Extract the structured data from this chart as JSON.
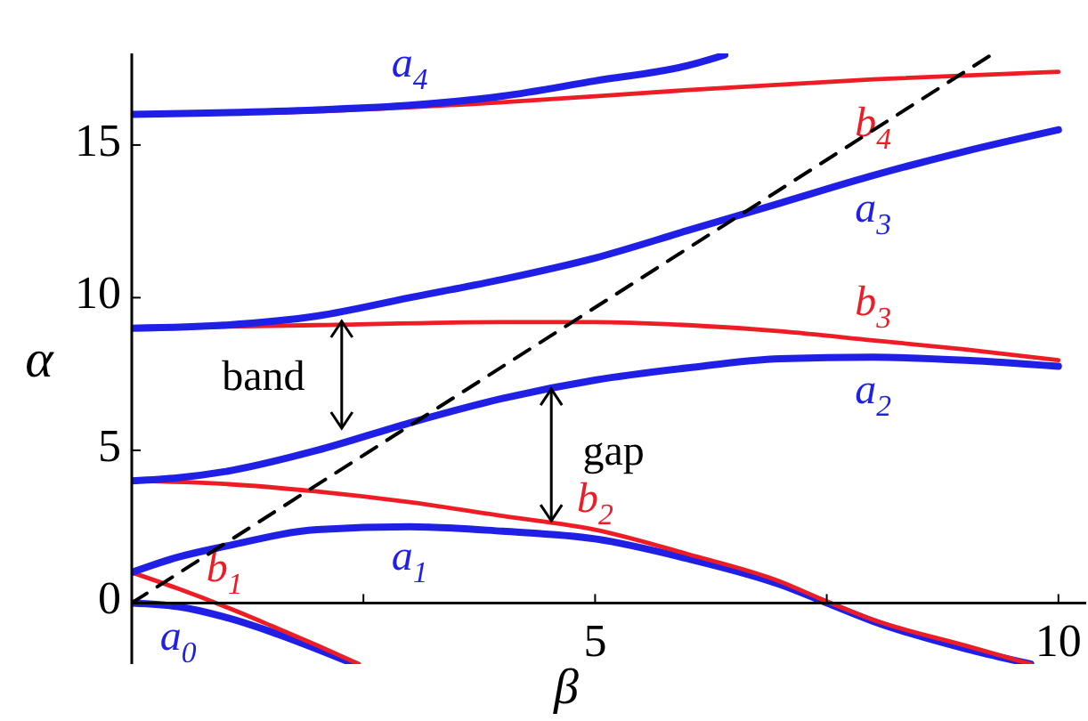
{
  "chart_data": {
    "type": "line",
    "xlabel": "β",
    "ylabel": "α",
    "xlim": [
      0,
      10.3
    ],
    "ylim": [
      -2,
      18
    ],
    "xticks": [
      {
        "value": 2.5,
        "label": null
      },
      5,
      {
        "value": 7.5,
        "label": null
      },
      10
    ],
    "yticks": [
      0,
      5,
      10,
      15
    ],
    "series": [
      {
        "name": "a$_{0}$",
        "color": "#1f1fe6",
        "x": [
          0,
          0.5,
          1,
          1.5,
          2,
          2.4
        ],
        "values": [
          0,
          -0.12,
          -0.46,
          -0.94,
          -1.51,
          -2
        ]
      },
      {
        "name": "b$_{1}$",
        "color": "#ee1c24",
        "x": [
          0,
          0.5,
          1,
          1.5,
          2,
          2.45
        ],
        "values": [
          1,
          0.47,
          -0.11,
          -0.74,
          -1.39,
          -2
        ]
      },
      {
        "name": "a$_{1}$",
        "color": "#1f1fe6",
        "x": [
          0,
          0.5,
          1,
          2,
          3,
          4,
          5,
          6,
          7,
          7.5,
          8,
          9,
          9.7
        ],
        "values": [
          1,
          1.5,
          1.85,
          2.4,
          2.5,
          2.35,
          2.1,
          1.45,
          0.6,
          0,
          -0.6,
          -1.5,
          -2
        ]
      },
      {
        "name": "b$_{2}$",
        "color": "#ee1c24",
        "x": [
          0,
          1,
          2,
          3,
          4,
          5,
          6,
          7,
          7.5,
          8,
          9,
          9.7
        ],
        "values": [
          4,
          3.9,
          3.65,
          3.3,
          2.85,
          2.4,
          1.6,
          0.7,
          0.05,
          -0.55,
          -1.4,
          -2
        ]
      },
      {
        "name": "a$_{2}$",
        "color": "#1f1fe6",
        "x": [
          0,
          0.5,
          1,
          2,
          3,
          4,
          5,
          6,
          7,
          8,
          9,
          10
        ],
        "values": [
          4,
          4.1,
          4.3,
          5,
          5.9,
          6.7,
          7.3,
          7.7,
          8,
          8.05,
          7.95,
          7.75
        ]
      },
      {
        "name": "b$_{3}$",
        "color": "#ee1c24",
        "x": [
          0,
          2,
          4,
          5,
          6,
          7,
          8,
          9,
          10
        ],
        "values": [
          9,
          9.1,
          9.2,
          9.2,
          9.1,
          8.9,
          8.6,
          8.3,
          7.95
        ]
      },
      {
        "name": "a$_{3}$",
        "color": "#1f1fe6",
        "x": [
          0,
          1,
          2,
          3,
          4,
          5,
          6,
          7,
          8,
          9,
          10
        ],
        "values": [
          9,
          9.1,
          9.4,
          10,
          10.6,
          11.3,
          12.2,
          13.1,
          14,
          14.8,
          15.5
        ]
      },
      {
        "name": "b$_{4}$",
        "color": "#ee1c24",
        "x": [
          0,
          2,
          4,
          6,
          8,
          10
        ],
        "values": [
          16,
          16.1,
          16.4,
          16.8,
          17.15,
          17.4
        ]
      },
      {
        "name": "a$_{4}$",
        "color": "#1f1fe6",
        "x": [
          0,
          2,
          3,
          4,
          5,
          6,
          6.4
        ],
        "values": [
          16,
          16.15,
          16.3,
          16.6,
          17.1,
          17.6,
          17.95
        ]
      },
      {
        "color": "#000000",
        "line_style": "dashed",
        "x": [
          0,
          9.3
        ],
        "values": [
          0,
          18
        ]
      }
    ],
    "annotations": [
      "band",
      "gap"
    ]
  }
}
